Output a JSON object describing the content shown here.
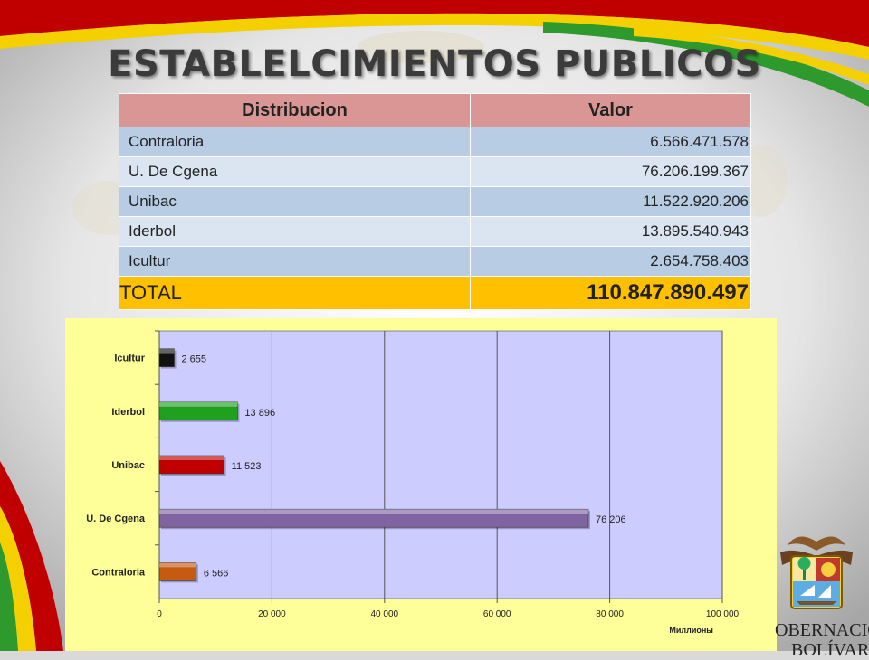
{
  "slide": {
    "title": "ESTABLELCIMIENTOS PUBLICOS",
    "colors": {
      "ribbon_red": "#c00000",
      "ribbon_yellow": "#f5d000",
      "ribbon_green": "#2e9a2e"
    }
  },
  "table": {
    "headers": {
      "name": "Distribucion",
      "value": "Valor"
    },
    "rows": [
      {
        "name": "Contraloria",
        "value": "6.566.471.578"
      },
      {
        "name": "U. De Cgena",
        "value": "76.206.199.367"
      },
      {
        "name": "Unibac",
        "value": "11.522.920.206"
      },
      {
        "name": "Iderbol",
        "value": "13.895.540.943"
      },
      {
        "name": "Icultur",
        "value": "2.654.758.403"
      }
    ],
    "total": {
      "name": "TOTAL",
      "value": "110.847.890.497"
    }
  },
  "logo": {
    "text_line1": "OBERNACIÓN",
    "text_line2": "BOLÍVAR",
    "icon": "coat-of-arms-icon"
  },
  "chart_data": {
    "type": "bar",
    "orientation": "horizontal",
    "categories": [
      "Contraloria",
      "U. De Cgena",
      "Unibac",
      "Iderbol",
      "Icultur"
    ],
    "values": [
      6566,
      76206,
      11523,
      13896,
      2655
    ],
    "data_labels": [
      "6 566",
      "76 206",
      "11 523",
      "13 896",
      "2 655"
    ],
    "colors": [
      "#c55a11",
      "#8064a2",
      "#c00000",
      "#1fa01f",
      "#111111"
    ],
    "xlim": [
      0,
      100000
    ],
    "xticks": [
      0,
      20000,
      40000,
      60000,
      80000,
      100000
    ],
    "xtick_labels": [
      "0",
      "20 000",
      "40 000",
      "60 000",
      "80 000",
      "100 000"
    ],
    "unit_label": "Миллионы",
    "grid": true,
    "plot_bg": "#ccccff",
    "frame_bg": "#ffff99"
  }
}
